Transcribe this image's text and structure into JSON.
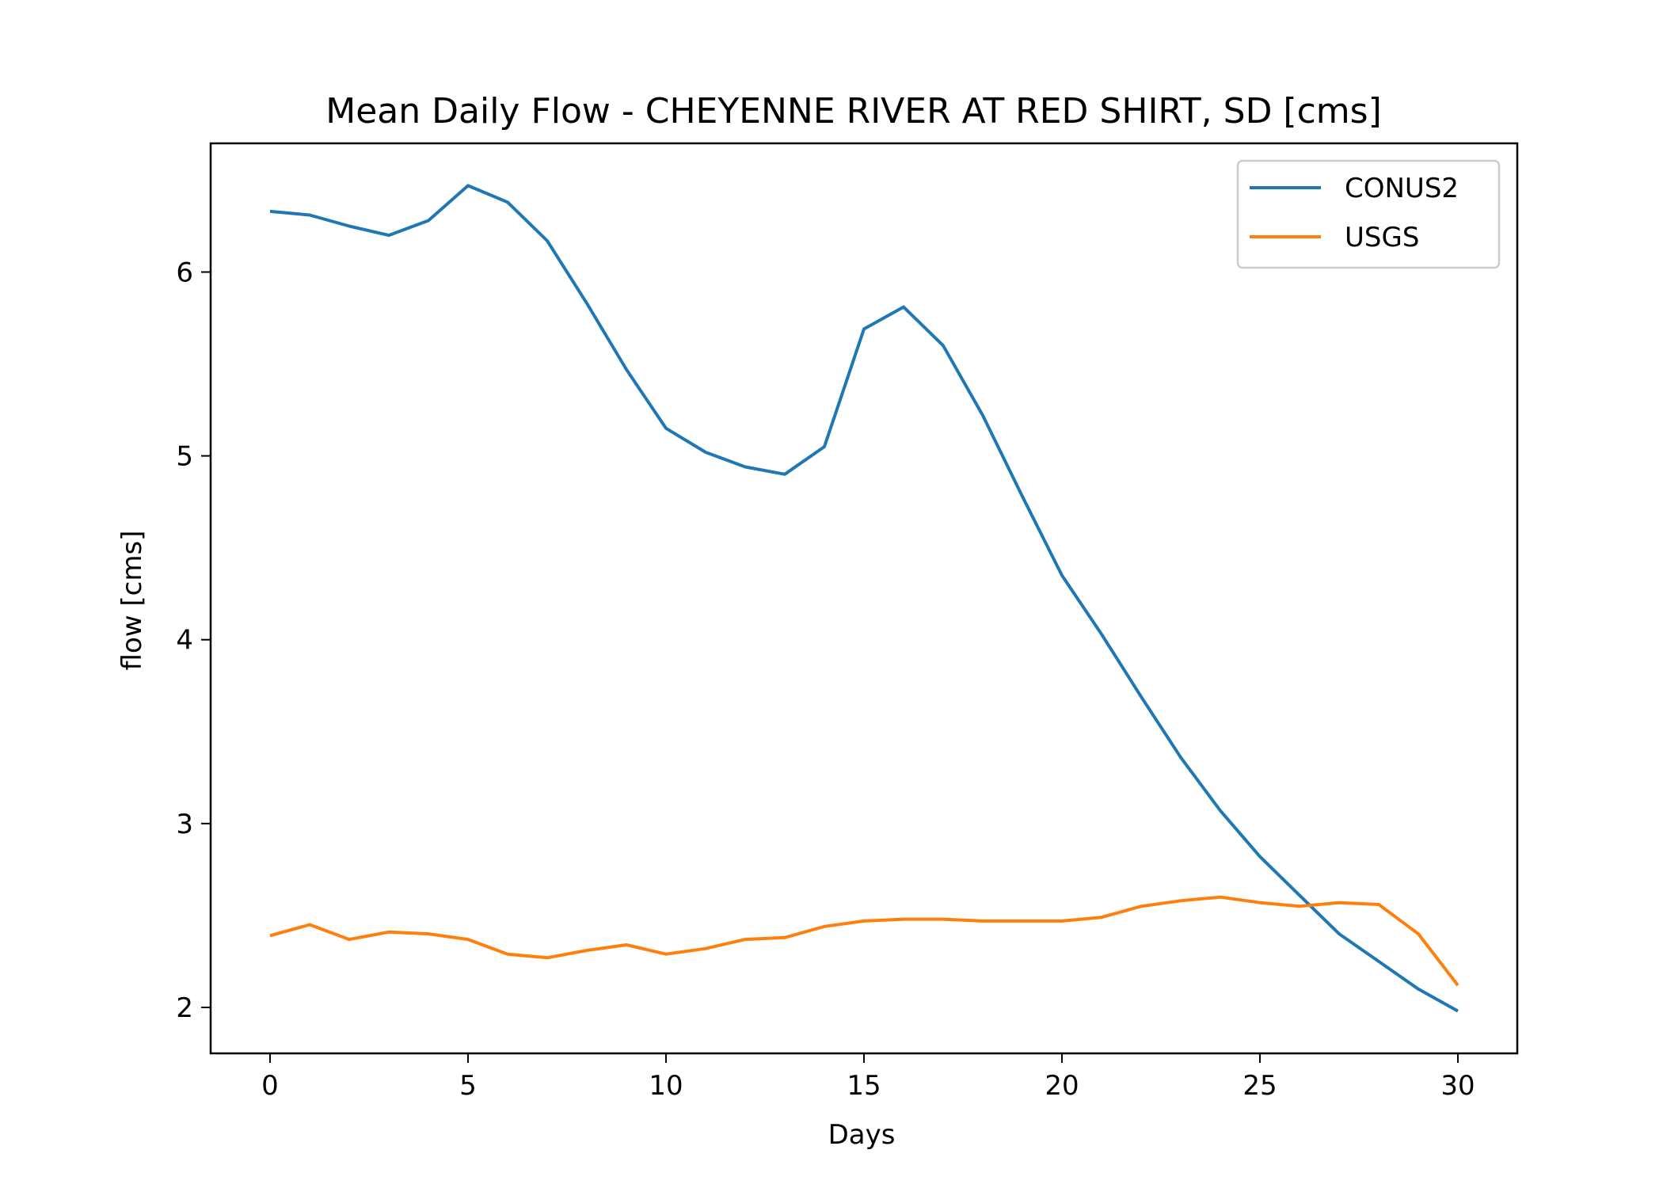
{
  "chart_data": {
    "type": "line",
    "title": "Mean Daily Flow - CHEYENNE RIVER AT RED SHIRT, SD [cms]",
    "xlabel": "Days",
    "ylabel": "flow [cms]",
    "xlim": [
      -1.5,
      31.5
    ],
    "ylim": [
      1.75,
      6.7
    ],
    "xticks": [
      0,
      5,
      10,
      15,
      20,
      25,
      30
    ],
    "yticks": [
      2,
      3,
      4,
      5,
      6
    ],
    "grid": false,
    "legend_position": "top-right",
    "x": [
      0,
      1,
      2,
      3,
      4,
      5,
      6,
      7,
      8,
      9,
      10,
      11,
      12,
      13,
      14,
      15,
      16,
      17,
      18,
      19,
      20,
      21,
      22,
      23,
      24,
      25,
      26,
      27,
      28,
      29,
      30
    ],
    "series": [
      {
        "name": "CONUS2",
        "color": "#1f77b4",
        "values": [
          6.33,
          6.31,
          6.25,
          6.2,
          6.28,
          6.47,
          6.38,
          6.17,
          5.83,
          5.47,
          5.15,
          5.02,
          4.94,
          4.9,
          5.05,
          5.69,
          5.81,
          5.6,
          5.22,
          4.78,
          4.35,
          4.03,
          3.69,
          3.36,
          3.07,
          2.82,
          2.61,
          2.4,
          2.25,
          2.1,
          1.98
        ]
      },
      {
        "name": "USGS",
        "color": "#ff7f0e",
        "values": [
          2.39,
          2.45,
          2.37,
          2.41,
          2.4,
          2.37,
          2.29,
          2.27,
          2.31,
          2.34,
          2.29,
          2.32,
          2.37,
          2.38,
          2.44,
          2.47,
          2.48,
          2.48,
          2.47,
          2.47,
          2.47,
          2.49,
          2.55,
          2.58,
          2.6,
          2.57,
          2.55,
          2.57,
          2.56,
          2.4,
          2.12
        ]
      }
    ]
  }
}
